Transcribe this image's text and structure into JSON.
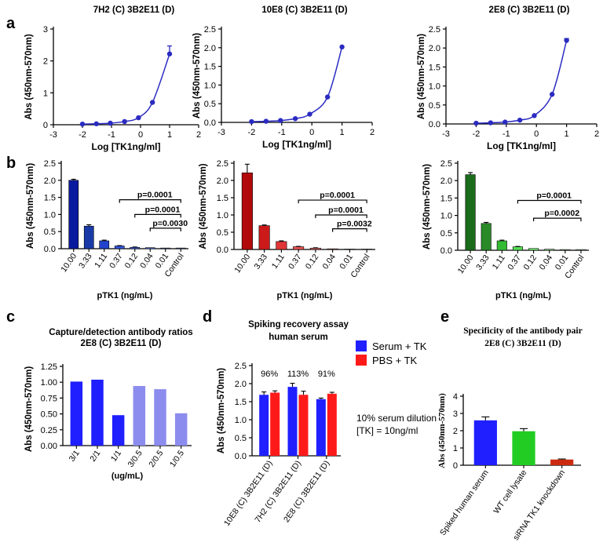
{
  "panel_letters": [
    "a",
    "b",
    "c",
    "d",
    "e"
  ],
  "colors": {
    "line": "#2b2bc2",
    "navy": "#0a1a9e",
    "axis": "#000000",
    "red_dark": "#b20a0a",
    "green_dark": "#1a6b1a",
    "blue_bright": "#1f1fff",
    "blue_light": "#8c8cee",
    "red_bright": "#ff1a1a",
    "green_bright": "#22cc22",
    "brown": "#cc2a10"
  },
  "chart_data": [
    {
      "id": "a1",
      "type": "line",
      "title": "7H2 (C) 3B2E11 (D)",
      "xlabel": "Log [TK1ng/ml]",
      "ylabel": "Abs (450nm-570nm)",
      "xlim": [
        -3,
        2
      ],
      "ylim": [
        0,
        3
      ],
      "xticks": [
        "-3",
        "-2",
        "-1",
        "0",
        "1",
        "2"
      ],
      "yticks": [
        "0",
        "1",
        "2",
        "3"
      ],
      "x": [
        -2,
        -1.52,
        -1.04,
        -0.55,
        -0.07,
        0.41,
        1
      ],
      "y": [
        0.02,
        0.03,
        0.05,
        0.1,
        0.22,
        0.7,
        2.22
      ],
      "err": [
        0,
        0,
        0,
        0,
        0,
        0,
        0.25
      ]
    },
    {
      "id": "a2",
      "type": "line",
      "title": "10E8 (C) 3B2E11 (D)",
      "xlabel": "Log [TK1ng/ml]",
      "ylabel": "Abs (450nm-570nm)",
      "xlim": [
        -3,
        2
      ],
      "ylim": [
        0,
        2.5
      ],
      "xticks": [
        "-3",
        "-2",
        "-1",
        "0",
        "1",
        "2"
      ],
      "yticks": [
        "0.0",
        "0.5",
        "1.0",
        "1.5",
        "2.0",
        "2.5"
      ],
      "x": [
        -2,
        -1.52,
        -1.04,
        -0.55,
        -0.07,
        0.52,
        1
      ],
      "y": [
        0.02,
        0.03,
        0.05,
        0.1,
        0.22,
        0.68,
        2.02
      ],
      "err": [
        0,
        0,
        0,
        0,
        0,
        0,
        0
      ]
    },
    {
      "id": "a3",
      "type": "line",
      "title": "2E8 (C) 3B2E11 (D)",
      "xlabel": "Log [TK1ng/ml]",
      "ylabel": "Abs (450nm-570nm)",
      "xlim": [
        -3,
        2
      ],
      "ylim": [
        0,
        2.5
      ],
      "xticks": [
        "-3",
        "-2",
        "-1",
        "0",
        "1",
        "2"
      ],
      "yticks": [
        "0.0",
        "0.5",
        "1.0",
        "1.5",
        "2.0",
        "2.5"
      ],
      "x": [
        -2,
        -1.52,
        -1.04,
        -0.55,
        -0.07,
        0.52,
        1
      ],
      "y": [
        0.02,
        0.03,
        0.05,
        0.1,
        0.22,
        0.78,
        2.2
      ],
      "err": [
        0,
        0,
        0,
        0,
        0,
        0,
        0.05
      ]
    },
    {
      "id": "b1",
      "type": "bar",
      "xlabel": "pTK1 (ng/mL)",
      "ylabel": "Abs (450nm-570nm)",
      "ylim": [
        0,
        2.5
      ],
      "yticks": [
        "0.0",
        "0.5",
        "1.0",
        "1.5",
        "2.0",
        "2.5"
      ],
      "categories": [
        "10.00",
        "3.33",
        "1.11",
        "0.37",
        "0.12",
        "0.04",
        "0.01",
        "Control"
      ],
      "values": [
        2.0,
        0.66,
        0.23,
        0.08,
        0.04,
        0.03,
        0.02,
        0.02
      ],
      "err": [
        0.03,
        0.04,
        0.02,
        0.01,
        0.01,
        0,
        0,
        0
      ],
      "colors": [
        "#0a1a9e",
        "#1a3aa8",
        "#2244cc",
        "#3355dd",
        "#4466ee",
        "#5577ee",
        "#6688ee",
        "#7799ff"
      ],
      "pvalues": [
        {
          "label": "p=0.0001",
          "from": 3,
          "to": 7,
          "y": 1.43
        },
        {
          "label": "p=0.0001",
          "from": 4,
          "to": 7,
          "y": 1.0
        },
        {
          "label": "p=0.0030",
          "from": 5,
          "to": 7,
          "y": 0.6
        }
      ]
    },
    {
      "id": "b2",
      "type": "bar",
      "xlabel": "pTK1 (ng/mL)",
      "ylabel": "Abs (450nm-570nm)",
      "ylim": [
        0,
        2.5
      ],
      "yticks": [
        "0.0",
        "0.5",
        "1.0",
        "1.5",
        "2.0",
        "2.5"
      ],
      "categories": [
        "10.00",
        "3.33",
        "1.11",
        "0.37",
        "0.12",
        "0.04",
        "0.01",
        "Control"
      ],
      "values": [
        2.22,
        0.69,
        0.23,
        0.08,
        0.04,
        0.02,
        0.01,
        0.01
      ],
      "err": [
        0.25,
        0.02,
        0.02,
        0.01,
        0.01,
        0,
        0,
        0
      ],
      "colors": [
        "#b20a0a",
        "#cc1a1a",
        "#e03535",
        "#ee5555",
        "#f07070",
        "#f28888",
        "#f4a0a0",
        "#f6b0b0"
      ],
      "pvalues": [
        {
          "label": "p=0.0001",
          "from": 3,
          "to": 7,
          "y": 1.43
        },
        {
          "label": "p=0.0001",
          "from": 4,
          "to": 7,
          "y": 1.0
        },
        {
          "label": "p=0.0032",
          "from": 5,
          "to": 7,
          "y": 0.6
        }
      ]
    },
    {
      "id": "b3",
      "type": "bar",
      "xlabel": "pTK1 (ng/mL)",
      "ylabel": "Abs (450nm-570nm)",
      "ylim": [
        0,
        2.5
      ],
      "yticks": [
        "0.0",
        "0.5",
        "1.0",
        "1.5",
        "2.0",
        "2.5"
      ],
      "categories": [
        "10.00",
        "3.33",
        "1.11",
        "0.37",
        "0.12",
        "0.04",
        "0.01",
        "Control"
      ],
      "values": [
        2.17,
        0.77,
        0.27,
        0.1,
        0.05,
        0.03,
        0.02,
        0.02
      ],
      "err": [
        0.06,
        0.03,
        0.02,
        0.01,
        0,
        0,
        0,
        0
      ],
      "colors": [
        "#1a6b1a",
        "#2a8a2a",
        "#33bb33",
        "#55dd55",
        "#77ee77",
        "#99ee99",
        "#bbf2bb",
        "#ccf5cc"
      ],
      "pvalues": [
        {
          "label": "p=0.0001",
          "from": 3,
          "to": 7,
          "y": 1.43
        },
        {
          "label": "p=0.0002",
          "from": 4,
          "to": 7,
          "y": 0.92
        }
      ]
    },
    {
      "id": "c",
      "type": "bar",
      "title": "Capture/detection antibody ratios",
      "subtitle": "2E8 (C) 3B2E11 (D)",
      "xlabel": "(ug/mL)",
      "ylabel": "Abs (450nm-570nm)",
      "ylim": [
        0,
        1.25
      ],
      "yticks": [
        "0.00",
        "0.25",
        "0.50",
        "0.75",
        "1.00",
        "1.25"
      ],
      "categories": [
        "3/1",
        "2/1",
        "1/1",
        "3/0.5",
        "2/0.5",
        "1/0.5"
      ],
      "values": [
        1.01,
        1.04,
        0.48,
        0.94,
        0.89,
        0.51
      ],
      "colors": [
        "#1f1fff",
        "#1f1fff",
        "#1f1fff",
        "#8c8cee",
        "#8c8cee",
        "#8c8cee"
      ]
    },
    {
      "id": "d",
      "type": "bar",
      "title": "Spiking recovery assay",
      "subtitle": "human serum",
      "xlabel": "",
      "ylabel": "Abs (450nm-570nm)",
      "ylim": [
        0,
        2.5
      ],
      "yticks": [
        "0.0",
        "0.5",
        "1.0",
        "1.5",
        "2.0",
        "2.5"
      ],
      "categories": [
        "10E8 (C) 3B2E11 (D)",
        "7H2 (C) 3B2E11 (D)",
        "2E8 (C) 3B2E11 (D)"
      ],
      "series": [
        {
          "name": "Serum + TK",
          "color": "#1f1fff",
          "values": [
            1.69,
            1.91,
            1.57
          ],
          "err": [
            0.08,
            0.1,
            0.03
          ]
        },
        {
          "name": "PBS + TK",
          "color": "#ff1a1a",
          "values": [
            1.75,
            1.69,
            1.72
          ],
          "err": [
            0.05,
            0.1,
            0.04
          ]
        }
      ],
      "annotations": [
        "96%",
        "113%",
        "91%"
      ],
      "note": [
        "10% serum dilution",
        "[TK] = 10ng/ml"
      ]
    },
    {
      "id": "e",
      "type": "bar",
      "title": "Specificity of the antibody pair",
      "subtitle": "2E8 (C) 3B2E11 (D)",
      "xlabel": "",
      "ylabel": "Abs (450nm-570nm)",
      "ylim": [
        0,
        4
      ],
      "yticks": [
        "0",
        "1",
        "2",
        "3",
        "4"
      ],
      "categories": [
        "Spiked human serum",
        "WT cell lysate",
        "siRNA TK1 knockdown"
      ],
      "values": [
        2.6,
        1.97,
        0.33
      ],
      "err": [
        0.2,
        0.15,
        0.03
      ],
      "colors": [
        "#1f1fff",
        "#22cc22",
        "#cc2a10"
      ]
    }
  ]
}
